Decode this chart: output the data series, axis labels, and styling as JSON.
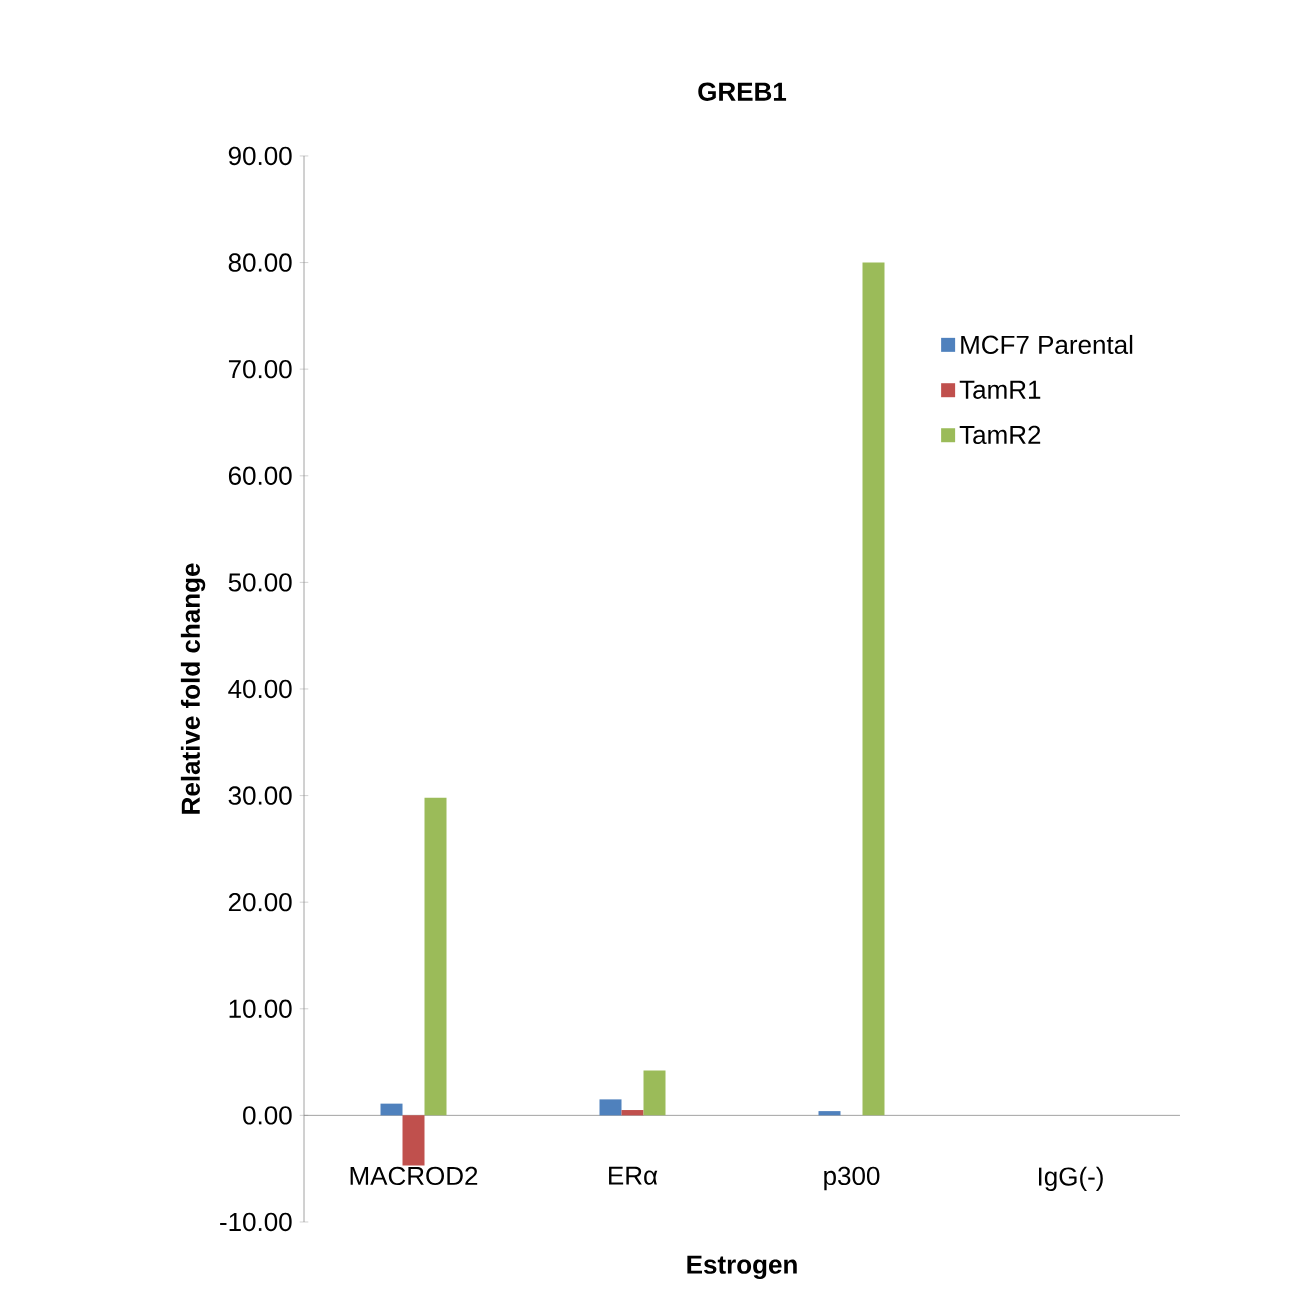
{
  "chart_data": {
    "type": "bar",
    "title": "GREB1",
    "xlabel": "Estrogen",
    "ylabel": "Relative fold change",
    "categories": [
      "MACROD2",
      "ERα",
      "p300",
      "IgG(-)"
    ],
    "series": [
      {
        "name": "MCF7 Parental",
        "color": "#4f81bd",
        "values": [
          1.1,
          1.5,
          0.4,
          0
        ]
      },
      {
        "name": "TamR1",
        "color": "#c0504d",
        "values": [
          -4.7,
          0.5,
          0,
          0
        ]
      },
      {
        "name": "TamR2",
        "color": "#9bbb59",
        "values": [
          29.8,
          4.2,
          80.0,
          0
        ]
      }
    ],
    "ylim": [
      -10,
      90
    ],
    "yticks": [
      {
        "value": -10,
        "label": "-10.00"
      },
      {
        "value": 0,
        "label": "0.00"
      },
      {
        "value": 10,
        "label": "10.00"
      },
      {
        "value": 20,
        "label": "20.00"
      },
      {
        "value": 30,
        "label": "30.00"
      },
      {
        "value": 40,
        "label": "40.00"
      },
      {
        "value": 50,
        "label": "50.00"
      },
      {
        "value": 60,
        "label": "60.00"
      },
      {
        "value": 70,
        "label": "70.00"
      },
      {
        "value": 80,
        "label": "80.00"
      },
      {
        "value": 90,
        "label": "90.00"
      }
    ],
    "legend": "right"
  }
}
